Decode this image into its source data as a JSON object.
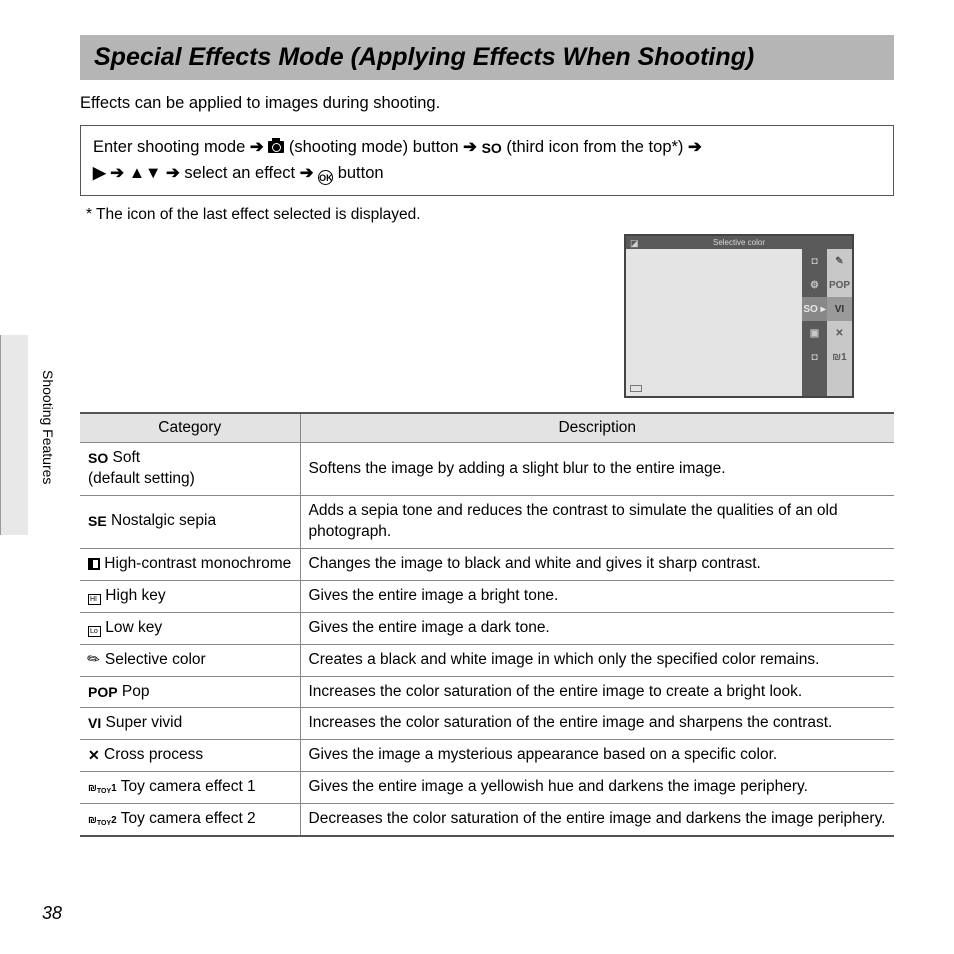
{
  "page_number": "38",
  "side_label": "Shooting Features",
  "title": "Special Effects Mode (Applying Effects When Shooting)",
  "intro": "Effects can be applied to images during shooting.",
  "nav_prefix": "Enter shooting mode",
  "nav_shooting_mode": "(shooting mode) button",
  "nav_so": "SO",
  "nav_third": "(third icon from the top*)",
  "nav_select": "select an effect",
  "nav_button": "button",
  "footnote": "*   The icon of the last effect selected is displayed.",
  "screen_title": "Selective color",
  "screen_left": [
    "",
    "",
    "SO ▸",
    "",
    ""
  ],
  "screen_right": [
    "✎",
    "POP",
    "VI",
    "✕",
    "1"
  ],
  "table": {
    "headers": [
      "Category",
      "Description"
    ],
    "rows": [
      {
        "icon": "SO",
        "label": " Soft\n(default setting)",
        "desc": "Softens the image by adding a slight blur to the entire image."
      },
      {
        "icon": "SE",
        "label": " Nostalgic sepia",
        "desc": "Adds a sepia tone and reduces the contrast to simulate the qualities of an old photograph."
      },
      {
        "icon": "SQ",
        "label": " High-contrast monochrome",
        "desc": "Changes the image to black and white and gives it sharp contrast."
      },
      {
        "icon": "HI",
        "label": " High key",
        "desc": "Gives the entire image a bright tone."
      },
      {
        "icon": "LO",
        "label": " Low key",
        "desc": "Gives the entire image a dark tone."
      },
      {
        "icon": "PEN",
        "label": " Selective color",
        "desc": "Creates a black and white image in which only the specified color remains."
      },
      {
        "icon": "POP",
        "label": " Pop",
        "desc": "Increases the color saturation of the entire image to create a bright look."
      },
      {
        "icon": "VI",
        "label": " Super vivid",
        "desc": "Increases the color saturation of the entire image and sharpens the contrast."
      },
      {
        "icon": "CX",
        "label": " Cross process",
        "desc": "Gives the image a mysterious appearance based on a specific color."
      },
      {
        "icon": "T1",
        "label": " Toy camera effect 1",
        "desc": "Gives the entire image a yellowish hue and darkens the image periphery."
      },
      {
        "icon": "T2",
        "label": " Toy camera effect 2",
        "desc": "Decreases the color saturation of the entire image and darkens the image periphery."
      }
    ]
  },
  "colors": {
    "title_bg": "#b5b5b5",
    "table_header_bg": "#e3e3e3",
    "border": "#555",
    "screen_bg": "#e4e4e4",
    "screen_bar": "#5a5a5a"
  }
}
